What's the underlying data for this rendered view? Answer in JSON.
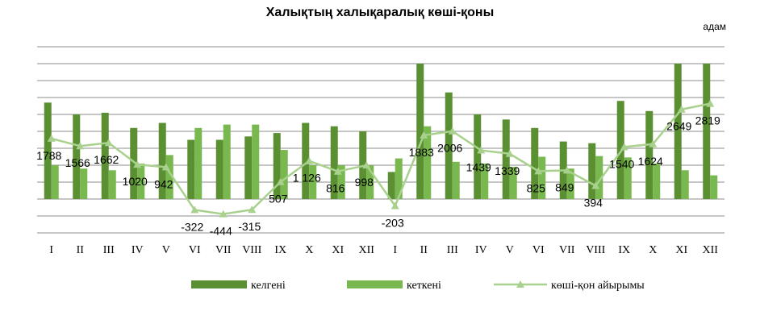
{
  "chart_data": {
    "type": "bar",
    "title": "Халықтың халықаралық көші-қоны",
    "unit": "адам",
    "categories": [
      "I",
      "II",
      "III",
      "IV",
      "V",
      "VI",
      "VII",
      "VIII",
      "IX",
      "X",
      "XI",
      "XII",
      "I",
      "II",
      "III",
      "IV",
      "V",
      "VI",
      "VII",
      "VIII",
      "IX",
      "X",
      "XI",
      "XII"
    ],
    "series": [
      {
        "name": "келгені",
        "type": "bar",
        "color": "#5b9032",
        "values": [
          2850,
          2500,
          2550,
          2100,
          2250,
          1750,
          1750,
          1850,
          1950,
          2250,
          2150,
          2000,
          800,
          4000,
          3150,
          2500,
          2350,
          2100,
          1700,
          1650,
          2900,
          2600,
          4000,
          4000
        ]
      },
      {
        "name": "кеткені",
        "type": "bar",
        "color": "#78b84e",
        "values": [
          1000,
          900,
          850,
          1050,
          1300,
          2100,
          2200,
          2200,
          1450,
          1000,
          1000,
          1000,
          1200,
          2150,
          1100,
          1050,
          950,
          1250,
          900,
          1270,
          1230,
          1050,
          850,
          700
        ]
      },
      {
        "name": "көші-қон  айырымы",
        "type": "line",
        "color": "#a9d18e",
        "values": [
          1788,
          1566,
          1662,
          1020,
          942,
          -322,
          -444,
          -315,
          507,
          1126,
          816,
          998,
          -203,
          1883,
          2006,
          1439,
          1339,
          825,
          849,
          394,
          1540,
          1624,
          2649,
          2819
        ],
        "labels": [
          "1788",
          "1566",
          "1662",
          "1020",
          "942",
          "-322",
          "-444",
          "-315",
          "507",
          "1 126",
          "816",
          "998",
          "-203",
          "1883",
          "2006",
          "1439",
          "1339",
          "825",
          "849",
          "394",
          "1540",
          "1624",
          "2649",
          "2819"
        ]
      }
    ],
    "ylim": [
      -1000,
      4500
    ],
    "grid": true,
    "legend_position": "bottom"
  }
}
